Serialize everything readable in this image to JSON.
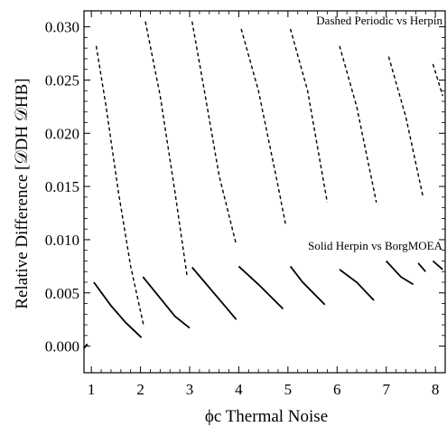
{
  "chart_data": {
    "type": "line",
    "xlabel": "ϕc Thermal Noise",
    "ylabel": "Relative Difference [𝒟DH  𝒟HB]",
    "xlim": [
      0.85,
      8.2
    ],
    "ylim": [
      -0.0025,
      0.0315
    ],
    "xticks": [
      "1",
      "2",
      "3",
      "4",
      "5",
      "6",
      "7",
      "8"
    ],
    "yticks": [
      "0.000",
      "0.005",
      "0.010",
      "0.015",
      "0.020",
      "0.025",
      "0.030"
    ],
    "annotations": [
      "Dashed Periodic vs Herpin",
      "Solid Herpin vs BorgMOEA"
    ],
    "series": [
      {
        "name": "Dashed Periodic vs Herpin",
        "style": "dashed",
        "segments": [
          [
            [
              1.1,
              0.0282
            ],
            [
              1.3,
              0.0225
            ],
            [
              1.55,
              0.0145
            ],
            [
              1.8,
              0.0075
            ],
            [
              2.07,
              0.0018
            ]
          ],
          [
            [
              2.1,
              0.0305
            ],
            [
              2.4,
              0.0235
            ],
            [
              2.7,
              0.0145
            ],
            [
              2.95,
              0.0065
            ]
          ],
          [
            [
              3.05,
              0.0305
            ],
            [
              3.3,
              0.024
            ],
            [
              3.6,
              0.016
            ],
            [
              3.95,
              0.0095
            ]
          ],
          [
            [
              4.05,
              0.0298
            ],
            [
              4.4,
              0.024
            ],
            [
              4.8,
              0.015
            ],
            [
              4.95,
              0.0115
            ]
          ],
          [
            [
              5.05,
              0.0298
            ],
            [
              5.4,
              0.024
            ],
            [
              5.8,
              0.0135
            ]
          ],
          [
            [
              6.05,
              0.0282
            ],
            [
              6.4,
              0.0225
            ],
            [
              6.8,
              0.0135
            ]
          ],
          [
            [
              7.05,
              0.0272
            ],
            [
              7.4,
              0.0215
            ],
            [
              7.75,
              0.014
            ]
          ],
          [
            [
              7.95,
              0.0265
            ],
            [
              8.15,
              0.0235
            ]
          ]
        ]
      },
      {
        "name": "Solid Herpin vs BorgMOEA",
        "style": "solid",
        "segments": [
          [
            [
              0.85,
              -0.0002
            ],
            [
              0.92,
              0.0002
            ]
          ],
          [
            [
              1.05,
              0.006
            ],
            [
              1.4,
              0.0038
            ],
            [
              1.7,
              0.0022
            ],
            [
              2.02,
              0.0008
            ]
          ],
          [
            [
              2.05,
              0.0065
            ],
            [
              2.4,
              0.0045
            ],
            [
              2.7,
              0.0028
            ],
            [
              3.0,
              0.0017
            ]
          ],
          [
            [
              3.05,
              0.0074
            ],
            [
              3.4,
              0.0055
            ],
            [
              3.95,
              0.0025
            ]
          ],
          [
            [
              4.0,
              0.0075
            ],
            [
              4.4,
              0.0058
            ],
            [
              4.9,
              0.0035
            ]
          ],
          [
            [
              5.05,
              0.0075
            ],
            [
              5.3,
              0.006
            ],
            [
              5.75,
              0.0039
            ]
          ],
          [
            [
              6.05,
              0.0072
            ],
            [
              6.4,
              0.006
            ],
            [
              6.75,
              0.0043
            ]
          ],
          [
            [
              7.0,
              0.008
            ],
            [
              7.3,
              0.0065
            ],
            [
              7.55,
              0.0058
            ]
          ],
          [
            [
              7.65,
              0.0078
            ],
            [
              7.8,
              0.007
            ]
          ],
          [
            [
              7.95,
              0.008
            ],
            [
              8.15,
              0.0072
            ]
          ]
        ]
      }
    ]
  }
}
